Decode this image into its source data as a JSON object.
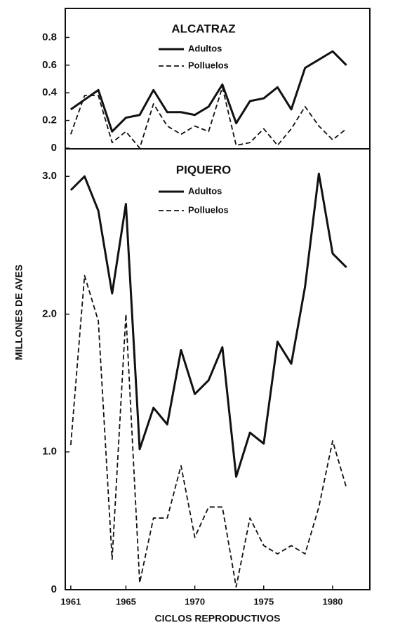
{
  "chart_data": [
    {
      "type": "line",
      "title": "ALCATRAZ",
      "x": [
        1961,
        1962,
        1963,
        1964,
        1965,
        1966,
        1967,
        1968,
        1969,
        1970,
        1971,
        1972,
        1973,
        1974,
        1975,
        1976,
        1977,
        1978,
        1979,
        1980,
        1981
      ],
      "series": [
        {
          "name": "Adultos",
          "color": "#111111",
          "line_style": "solid",
          "values": [
            0.28,
            0.35,
            0.42,
            0.12,
            0.22,
            0.24,
            0.42,
            0.26,
            0.26,
            0.24,
            0.3,
            0.46,
            0.18,
            0.34,
            0.36,
            0.44,
            0.28,
            0.58,
            0.64,
            0.7,
            0.6
          ]
        },
        {
          "name": "Polluelos",
          "color": "#111111",
          "line_style": "dashed",
          "values": [
            0.1,
            0.38,
            0.38,
            0.04,
            0.12,
            0.0,
            0.32,
            0.16,
            0.1,
            0.16,
            0.12,
            0.44,
            0.02,
            0.04,
            0.14,
            0.02,
            0.14,
            0.3,
            0.16,
            0.06,
            0.14
          ]
        }
      ],
      "xlim": [
        1960.6,
        1982.7
      ],
      "ylim": [
        0,
        1.0
      ],
      "yticks": [
        0,
        0.2,
        0.4,
        0.6,
        0.8
      ]
    },
    {
      "type": "line",
      "title": "PIQUERO",
      "x": [
        1961,
        1962,
        1963,
        1964,
        1965,
        1966,
        1967,
        1968,
        1969,
        1970,
        1971,
        1972,
        1973,
        1974,
        1975,
        1976,
        1977,
        1978,
        1979,
        1980,
        1981
      ],
      "series": [
        {
          "name": "Adultos",
          "color": "#111111",
          "line_style": "solid",
          "values": [
            2.9,
            3.0,
            2.75,
            2.15,
            2.8,
            1.02,
            1.32,
            1.2,
            1.74,
            1.42,
            1.52,
            1.76,
            0.82,
            1.14,
            1.06,
            1.8,
            1.64,
            2.2,
            3.02,
            2.44,
            2.34
          ]
        },
        {
          "name": "Polluelos",
          "color": "#111111",
          "line_style": "dashed",
          "values": [
            1.05,
            2.28,
            1.95,
            0.22,
            2.0,
            0.05,
            0.52,
            0.52,
            0.9,
            0.38,
            0.6,
            0.6,
            0.02,
            0.52,
            0.32,
            0.26,
            0.32,
            0.26,
            0.6,
            1.08,
            0.74
          ]
        }
      ],
      "xlim": [
        1960.6,
        1982.7
      ],
      "ylim": [
        0,
        3.2
      ],
      "yticks": [
        0,
        {
          "value": 1,
          "label": "1.0"
        },
        {
          "value": 2,
          "label": "2.0"
        },
        {
          "value": 3,
          "label": "3.0"
        }
      ],
      "xticks": [
        1961,
        1965,
        1970,
        1975,
        1980
      ],
      "xlabel": "CICLOS  REPRODUCTIVOS",
      "ylabel": "MILLONES DE AVES"
    }
  ]
}
